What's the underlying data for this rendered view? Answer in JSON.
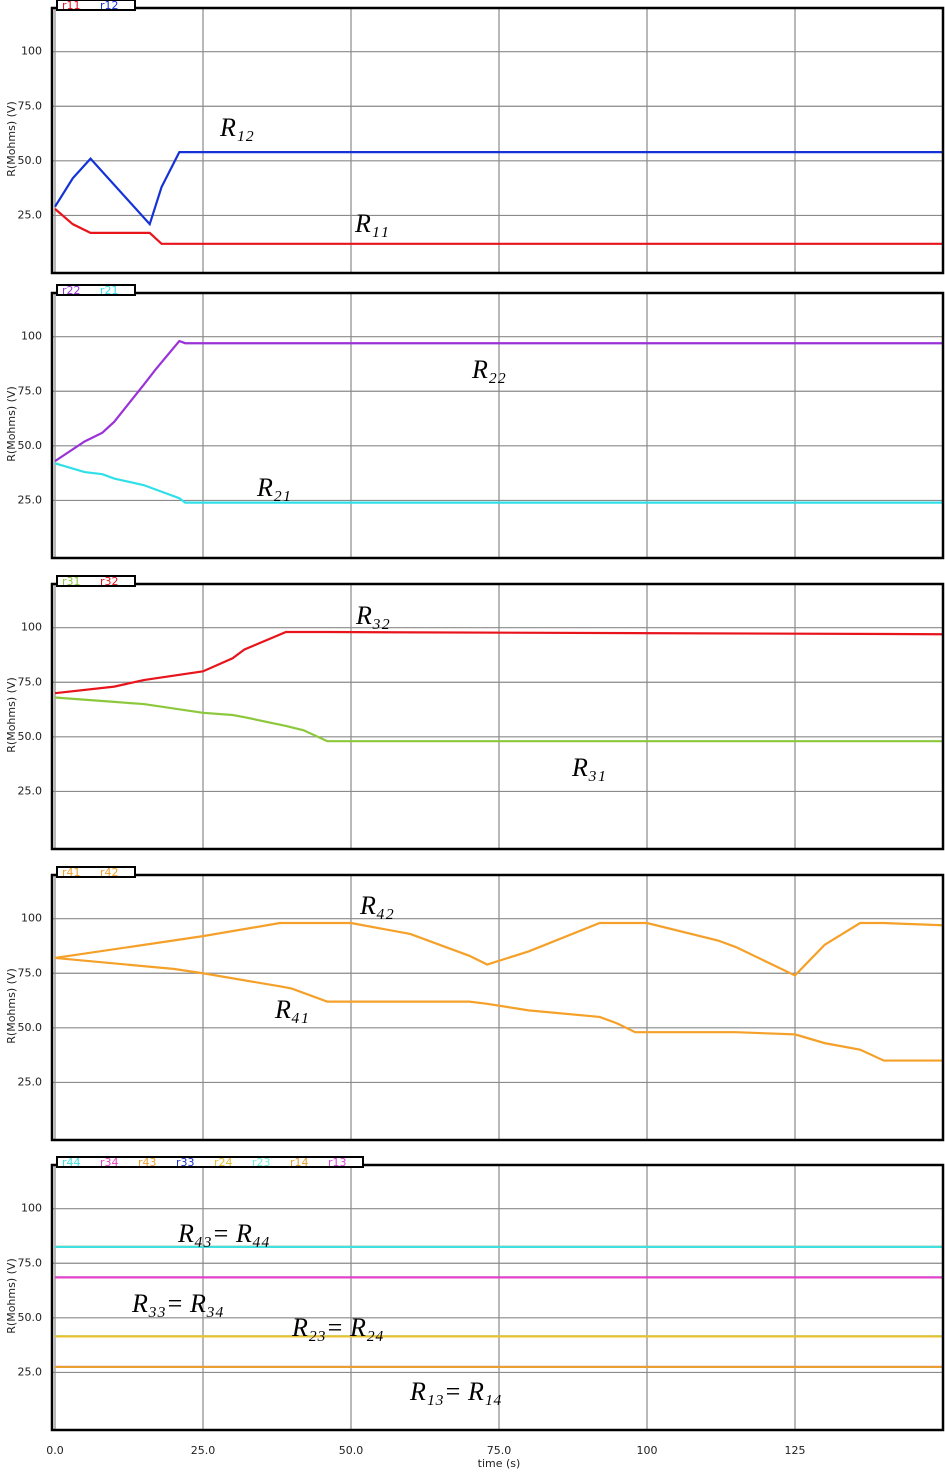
{
  "chart_data": [
    {
      "type": "line",
      "ylabel": "R(Mohms) (V)",
      "xlim": [
        0,
        150
      ],
      "xticks": [
        0,
        25,
        50,
        75,
        100,
        125
      ],
      "ylim": [
        0,
        120
      ],
      "yticks": [
        {
          "value": 25,
          "label": "25.0"
        },
        {
          "value": 50,
          "label": "50.0"
        },
        {
          "value": 75,
          "label": "75.0"
        },
        100
      ],
      "grid": true,
      "x": [
        0,
        3,
        6,
        16,
        18,
        21,
        150
      ],
      "series": [
        {
          "name": "r11",
          "color": "#e8141c",
          "values": [
            28,
            21,
            17,
            17,
            12,
            12,
            12
          ]
        },
        {
          "name": "r12",
          "color": "#1432d8",
          "values": [
            29,
            42,
            51,
            21,
            38,
            54,
            54
          ]
        }
      ],
      "annotations": [
        "R₁₂",
        "R₁₁"
      ]
    },
    {
      "type": "line",
      "ylabel": "R(Mohms) (V)",
      "xlim": [
        0,
        150
      ],
      "xticks": [
        0,
        25,
        50,
        75,
        100,
        125
      ],
      "ylim": [
        0,
        120
      ],
      "yticks": [
        {
          "value": 25,
          "label": "25.0"
        },
        {
          "value": 50,
          "label": "50.0"
        },
        {
          "value": 75,
          "label": "75.0"
        },
        100
      ],
      "grid": true,
      "x": [
        0,
        5,
        8,
        10,
        15,
        17,
        21,
        22,
        150
      ],
      "series": [
        {
          "name": "r22",
          "color": "#9a32d8",
          "values": [
            43,
            52,
            56,
            61,
            78,
            85,
            98,
            97,
            97
          ]
        },
        {
          "name": "r21",
          "color": "#30e0e8",
          "values": [
            42,
            38,
            37,
            35,
            32,
            30,
            26,
            24,
            24
          ]
        }
      ],
      "annotations": [
        "R₂₂",
        "R₂₁"
      ]
    },
    {
      "type": "line",
      "ylabel": "R(Mohms) (V)",
      "xlim": [
        0,
        150
      ],
      "xticks": [
        0,
        25,
        50,
        75,
        100,
        125
      ],
      "ylim": [
        0,
        120
      ],
      "yticks": [
        {
          "value": 25,
          "label": "25.0"
        },
        {
          "value": 50,
          "label": "50.0"
        },
        {
          "value": 75,
          "label": "75.0"
        },
        100
      ],
      "grid": true,
      "x": [
        0,
        10,
        15,
        25,
        30,
        32,
        39,
        42,
        46,
        150
      ],
      "series": [
        {
          "name": "r31",
          "color": "#8cc83c",
          "values": [
            68,
            66,
            65,
            61,
            60,
            59,
            55,
            53,
            48,
            48
          ]
        },
        {
          "name": "r32",
          "color": "#e8141c",
          "values": [
            70,
            73,
            76,
            80,
            86,
            90,
            98,
            98,
            98,
            97
          ]
        }
      ],
      "annotations": [
        "R₃₂",
        "R₃₁"
      ]
    },
    {
      "type": "line",
      "ylabel": "R(Mohms) (V)",
      "xlim": [
        0,
        150
      ],
      "xticks": [
        0,
        25,
        50,
        75,
        100,
        125
      ],
      "ylim": [
        0,
        120
      ],
      "yticks": [
        {
          "value": 25,
          "label": "25.0"
        },
        {
          "value": 50,
          "label": "50.0"
        },
        {
          "value": 75,
          "label": "75.0"
        },
        100
      ],
      "grid": true,
      "x": [
        0,
        20,
        25,
        38,
        40,
        46,
        50,
        60,
        70,
        73,
        80,
        92,
        95,
        98,
        100,
        112,
        115,
        125,
        130,
        136,
        140,
        150
      ],
      "series": [
        {
          "name": "r41",
          "color": "#f5a028",
          "values": [
            82,
            77,
            75,
            69,
            68,
            62,
            62,
            62,
            62,
            61,
            58,
            55,
            52,
            48,
            48,
            48,
            48,
            47,
            43,
            40,
            35,
            35
          ]
        },
        {
          "name": "r42",
          "color": "#f5a028",
          "values": [
            82,
            90,
            92,
            98,
            98,
            98,
            98,
            93,
            83,
            79,
            85,
            98,
            98,
            98,
            98,
            90,
            87,
            74,
            88,
            98,
            98,
            97
          ]
        }
      ],
      "annotations": [
        "R₄₂",
        "R₄₁"
      ]
    },
    {
      "type": "line",
      "ylabel": "R(Mohms) (V)",
      "xlabel": "time (s)",
      "xlim": [
        0,
        150
      ],
      "xticks": [
        {
          "value": 0,
          "label": "0.0"
        },
        {
          "value": 25,
          "label": "25.0"
        },
        {
          "value": 50,
          "label": "50.0"
        },
        {
          "value": 75,
          "label": "75.0"
        },
        100,
        125
      ],
      "show_xtick_labels": true,
      "ylim": [
        0,
        120
      ],
      "yticks": [
        {
          "value": 25,
          "label": "25.0"
        },
        {
          "value": 50,
          "label": "50.0"
        },
        {
          "value": 75,
          "label": "75.0"
        },
        100
      ],
      "grid": true,
      "x": [
        0,
        150
      ],
      "series": [
        {
          "name": "r44",
          "color": "#40e0e0",
          "values": [
            82.5,
            82.5
          ]
        },
        {
          "name": "r34",
          "color": "#e840c8",
          "values": [
            68.5,
            68.5
          ]
        },
        {
          "name": "r43",
          "color": "#f0a030",
          "values": [
            82.5,
            82.5
          ]
        },
        {
          "name": "r33",
          "color": "#2030d0",
          "values": [
            68.5,
            68.5
          ]
        },
        {
          "name": "r24",
          "color": "#e8c030",
          "values": [
            41.5,
            41.5
          ]
        },
        {
          "name": "r23",
          "color": "#70f0d0",
          "values": [
            41.5,
            41.5
          ]
        },
        {
          "name": "r14",
          "color": "#e8a030",
          "values": [
            27.5,
            27.5
          ]
        },
        {
          "name": "r13",
          "color": "#e040e0",
          "values": [
            27.5,
            27.5
          ]
        }
      ],
      "annotations": [
        "R₄₃= R₄₄",
        "R₃₃= R₃₄",
        "R₂₃= R₂₄",
        "R₁₃= R₁₄"
      ]
    }
  ]
}
